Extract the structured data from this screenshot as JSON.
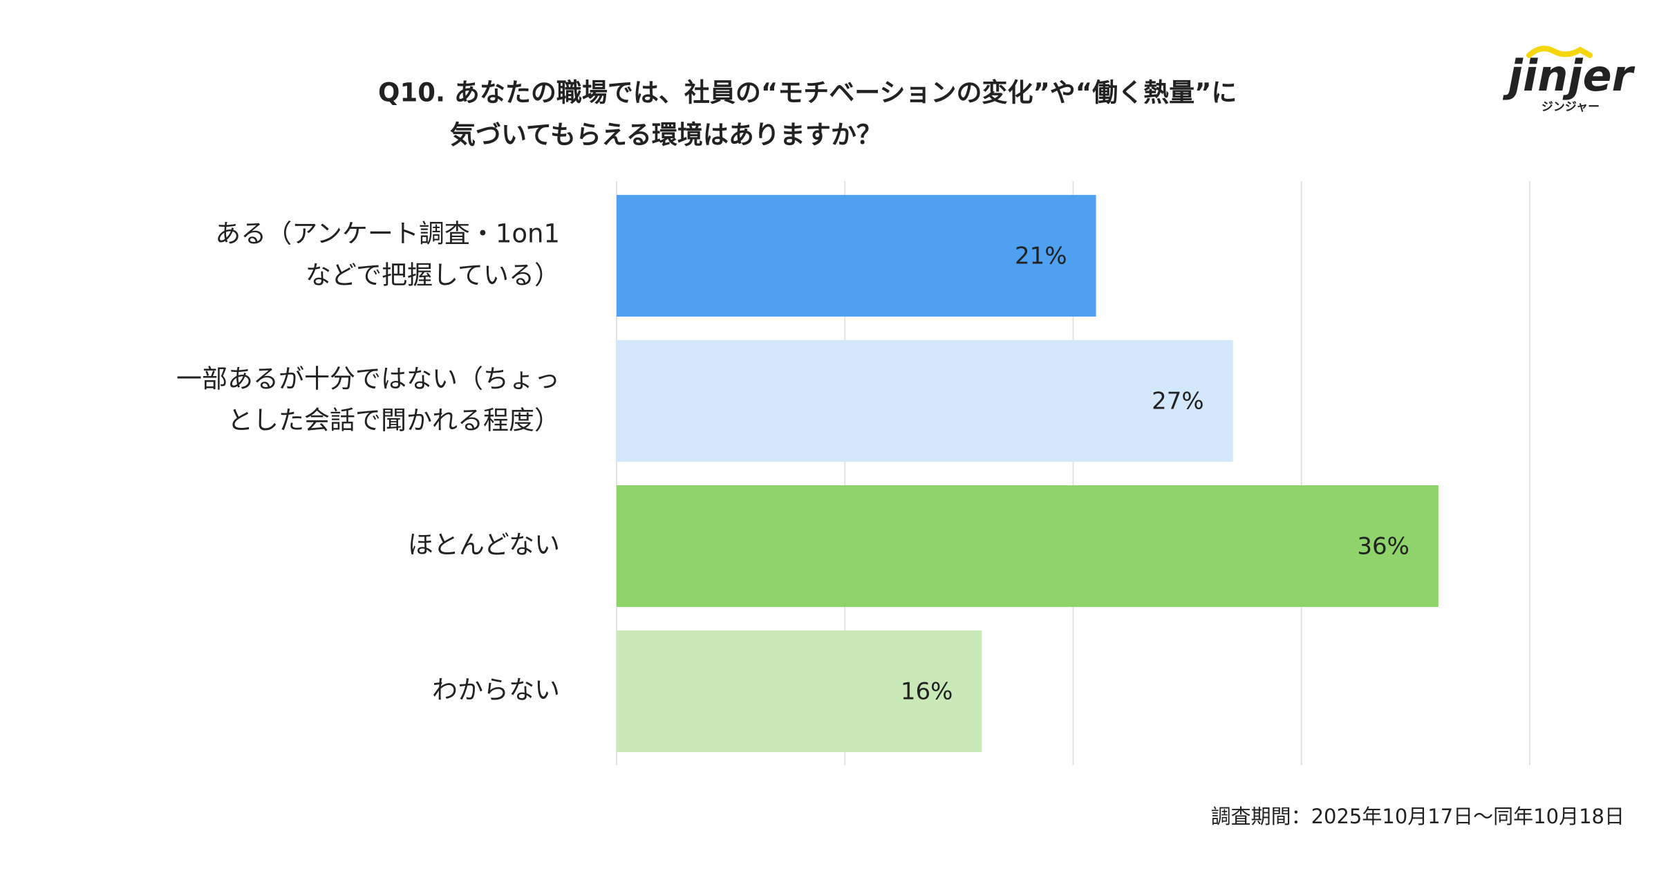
{
  "chart_data": {
    "type": "hbar",
    "title": [
      "Q10. あなたの職場では、社員の“モチベーションの変化”や“働く熱量”に",
      "気づいてもらえる環境はありますか？"
    ],
    "categories": [
      [
        "ある（アンケート調査・1on1",
        "などで把握している）"
      ],
      [
        "一部あるが十分ではない（ちょっ",
        "とした会話で聞かれる程度）"
      ],
      [
        "ほとんどない"
      ],
      [
        "わからない"
      ]
    ],
    "values": [
      21,
      27,
      36,
      16
    ],
    "value_labels": [
      "21%",
      "27%",
      "36%",
      "16%"
    ],
    "colors": [
      "#4fa0f0",
      "#d4e8fb",
      "#8fd46a",
      "#c9eab8"
    ],
    "xlim": [
      0,
      40
    ],
    "xticks": [
      0,
      10,
      20,
      30,
      40
    ],
    "grid": true,
    "note": "調査期間：2025年10月17日〜同年10月18日",
    "logo": {
      "name": "jinjer",
      "kana": "ジンジャー"
    }
  }
}
